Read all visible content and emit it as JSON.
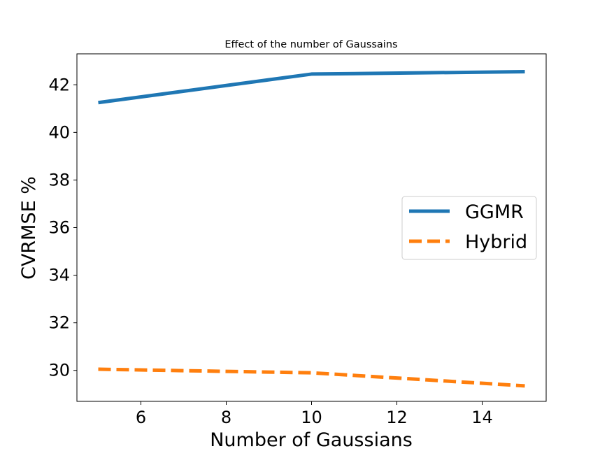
{
  "chart_data": {
    "type": "line",
    "title": "Effect of the number of Gaussains",
    "xlabel": "Number of Gaussians",
    "ylabel": "CVRMSE %",
    "xlim": [
      4.5,
      15.5
    ],
    "ylim": [
      28.7,
      43.3
    ],
    "xticks": [
      6,
      8,
      10,
      12,
      14
    ],
    "yticks": [
      30,
      32,
      34,
      36,
      38,
      40,
      42
    ],
    "x": [
      5,
      10,
      15
    ],
    "series": [
      {
        "name": "GGMR",
        "values": [
          41.25,
          42.45,
          42.55
        ],
        "color": "#1f77b4",
        "style": "solid"
      },
      {
        "name": "Hybrid",
        "values": [
          30.05,
          29.9,
          29.35
        ],
        "color": "#ff7f0e",
        "style": "dashed"
      }
    ],
    "legend": {
      "position": "center-right",
      "entries": [
        "GGMR",
        "Hybrid"
      ]
    },
    "grid": false
  }
}
